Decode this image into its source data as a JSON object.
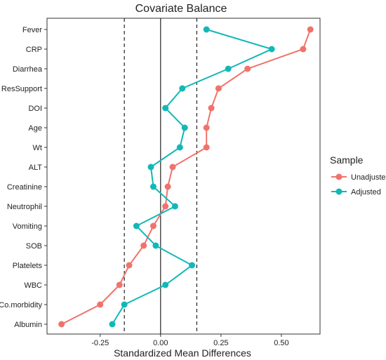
{
  "chart_data": {
    "type": "scatter",
    "title": "Covariate Balance",
    "xlabel": "Standardized Mean Differences",
    "ylabel": "",
    "xlim": [
      -0.47,
      0.66
    ],
    "x_ticks": [
      -0.25,
      0.0,
      0.25,
      0.5
    ],
    "x_tick_labels": [
      "-0.25",
      "0.00",
      "0.25",
      "0.50"
    ],
    "thresholds": [
      -0.15,
      0.15
    ],
    "zero_line": 0,
    "grid": false,
    "legend_position": "right",
    "legend_title": "Sample",
    "categories": [
      "Fever",
      "CRP",
      "Diarrhea",
      "ResSupport",
      "DOI",
      "Age",
      "Wt",
      "ALT",
      "Creatinine",
      "Neutrophil",
      "Vomiting",
      "SOB",
      "Platelets",
      "WBC",
      "Co.morbidity",
      "Albumin"
    ],
    "series": [
      {
        "name": "Unadjusted",
        "color": "#f0736b",
        "values": [
          0.62,
          0.59,
          0.36,
          0.24,
          0.21,
          0.19,
          0.19,
          0.05,
          0.03,
          0.02,
          -0.03,
          -0.07,
          -0.13,
          -0.17,
          -0.25,
          -0.41
        ]
      },
      {
        "name": "Adjusted",
        "color": "#12b8b7",
        "values": [
          0.19,
          0.46,
          0.28,
          0.09,
          0.02,
          0.1,
          0.08,
          -0.04,
          -0.03,
          0.06,
          -0.1,
          -0.02,
          0.13,
          0.02,
          -0.15,
          -0.2
        ]
      }
    ]
  }
}
